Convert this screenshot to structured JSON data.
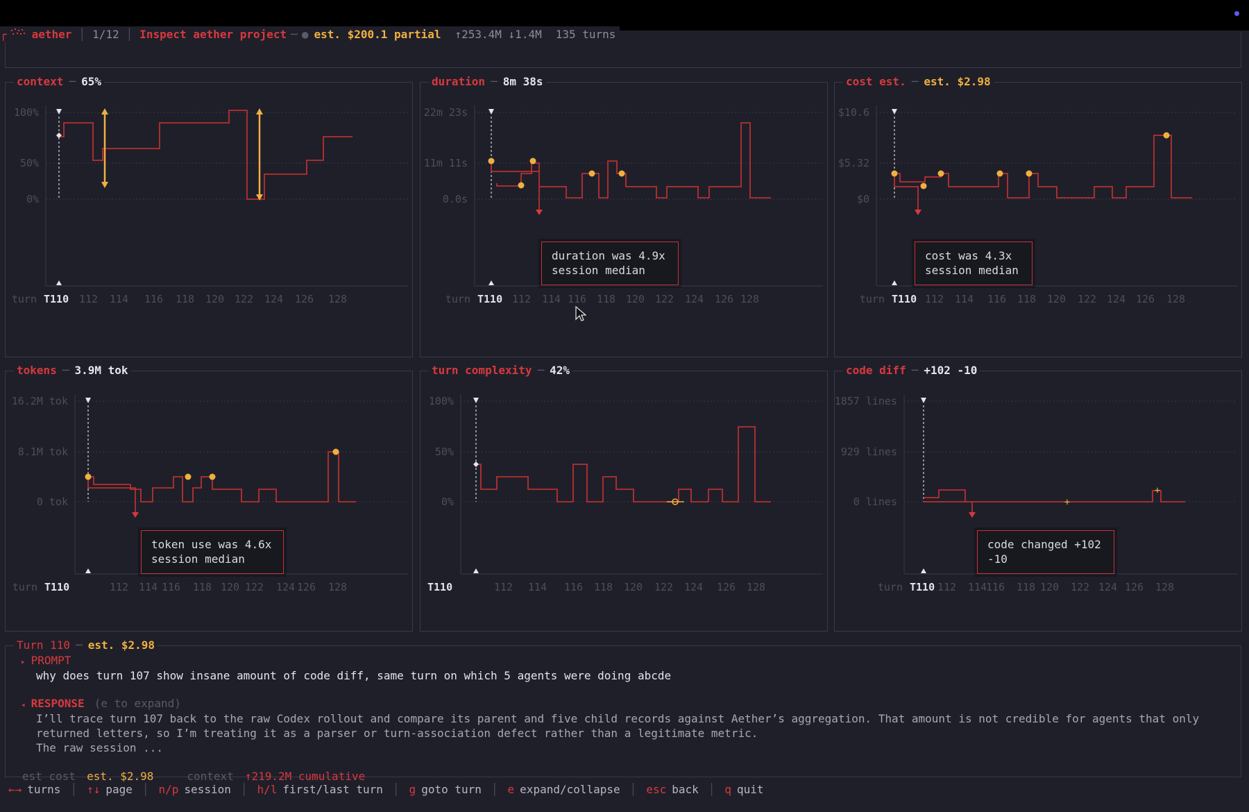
{
  "header": {
    "app": "aether",
    "page": "1/12",
    "project": "Inspect aether project",
    "cost": "est. $200.1 partial",
    "tokens": "↑253.4M ↓1.4M",
    "turns": "135 turns"
  },
  "panels": {
    "context": {
      "title": "context",
      "value": "65%",
      "y_labels": [
        "100%",
        "50%",
        "0%"
      ],
      "x_prefix": "turn",
      "x_selected": "T110",
      "x_labels": [
        "112",
        "114",
        "116",
        "118",
        "120",
        "122",
        "124",
        "126",
        "128"
      ]
    },
    "duration": {
      "title": "duration",
      "value": "8m 38s",
      "y_labels": [
        "22m 23s",
        "11m 11s",
        "0.0s"
      ],
      "x_prefix": "turn",
      "x_selected": "T110",
      "x_labels": [
        "112",
        "114",
        "116",
        "118",
        "120",
        "122",
        "124",
        "126",
        "128"
      ],
      "tooltip": "duration was 4.9x session median"
    },
    "cost": {
      "title": "cost est.",
      "value": "est. $2.98",
      "y_labels": [
        "$10.6",
        "$5.32",
        "$0"
      ],
      "x_prefix": "turn",
      "x_selected": "T110",
      "x_labels": [
        "112",
        "114",
        "116",
        "118",
        "120",
        "122",
        "124",
        "126",
        "128"
      ],
      "tooltip": "cost was 4.3x session median"
    },
    "tokens": {
      "title": "tokens",
      "value": "3.9M tok",
      "y_labels": [
        "16.2M tok",
        "8.1M tok",
        "0 tok"
      ],
      "x_prefix": "turn",
      "x_selected": "T110",
      "x_labels": [
        "112",
        "114",
        "116",
        "118",
        "120",
        "122",
        "124",
        "126",
        "128"
      ],
      "tooltip": "token use was 4.6x session median"
    },
    "complexity": {
      "title": "turn complexity",
      "value": "42%",
      "y_labels": [
        "100%",
        "50%",
        "0%"
      ],
      "x_prefix": "turn",
      "x_selected": "T110",
      "x_labels": [
        "112",
        "114",
        "116",
        "118",
        "120",
        "122",
        "124",
        "126",
        "128"
      ]
    },
    "diff": {
      "title": "code diff",
      "value": "+102 -10",
      "y_labels": [
        "1857 lines",
        "929 lines",
        "0 lines"
      ],
      "x_prefix": "turn",
      "x_selected": "T110",
      "x_labels": [
        "112",
        "114",
        "116",
        "118",
        "120",
        "122",
        "124",
        "126",
        "128"
      ],
      "tooltip": "code changed +102 -10"
    }
  },
  "turn": {
    "title": "Turn 110",
    "cost": "est. $2.98",
    "prompt_label": "PROMPT",
    "prompt": "why does turn 107 show insane amount of code diff, same turn on which 5 agents were doing abcde",
    "response_label": "RESPONSE",
    "response_hint": "(e to expand)",
    "response_lines": [
      "I’ll trace turn 107 back to the raw Codex rollout and compare its parent and five child records against Aether’s aggregation. That amount is not credible for agents that only",
      "returned letters, so I’m treating it as a parser or turn-association defect rather than a legitimate metric.",
      "The raw session ..."
    ],
    "est_cost_label": "est cost",
    "est_cost": "est. $2.98",
    "context_label": "context",
    "context_value": "↑219.2M cumulative"
  },
  "footer": [
    {
      "key": "←→",
      "label": "turns"
    },
    {
      "key": "↑↓",
      "label": "page"
    },
    {
      "key": "n/p",
      "label": "session"
    },
    {
      "key": "h/l",
      "label": "first/last turn"
    },
    {
      "key": "g",
      "label": "goto turn"
    },
    {
      "key": "e",
      "label": "expand/collapse"
    },
    {
      "key": "esc",
      "label": "back"
    },
    {
      "key": "q",
      "label": "quit"
    }
  ],
  "colors": {
    "accent": "#d8393d",
    "amber": "#f0b040",
    "bg": "#1f1f2a",
    "line": "#b8302f"
  }
}
